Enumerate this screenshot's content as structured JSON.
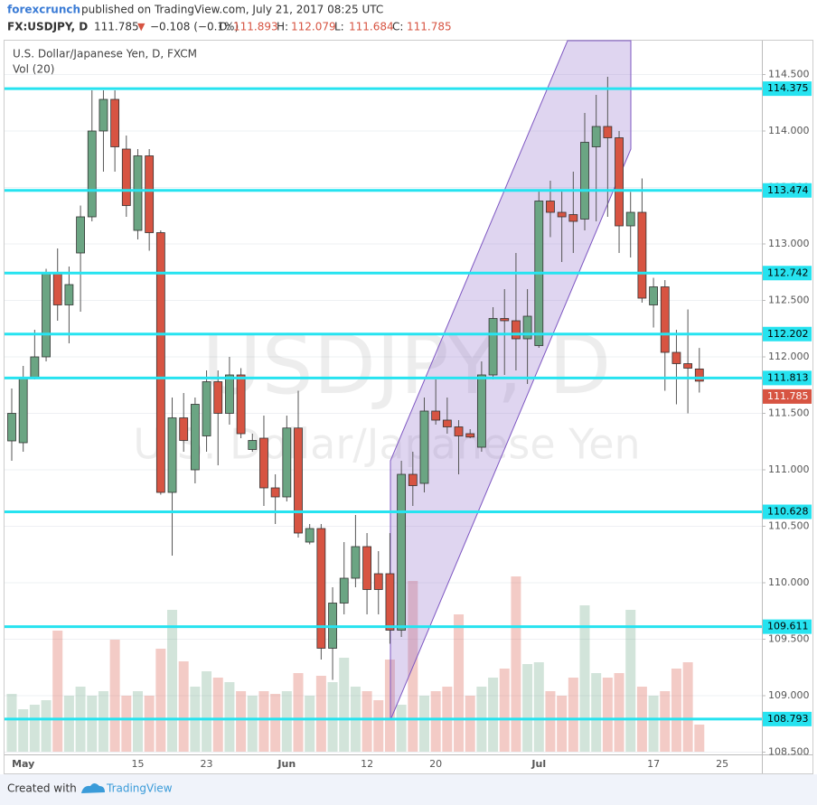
{
  "header": {
    "author": "forexcrunch",
    "published": "published on TradingView.com, July 21, 2017 08:25 UTC",
    "symbol": "FX:USDJPY, D",
    "arrow": "▼",
    "change": "−0.108 (−0.1%)",
    "ohlc_labels": [
      "O:",
      "H:",
      "L:",
      "C:"
    ]
  },
  "chart_data": {
    "type": "candlestick",
    "title": "U.S. Dollar/Japanese Yen, D, FXCM",
    "volume_label": "Vol (20)",
    "watermark": [
      "USDJPY, D",
      "U.S. Dollar/Japanese Yen"
    ],
    "categories": [
      null,
      "May",
      null,
      null,
      null,
      null,
      null,
      null,
      null,
      null,
      null,
      "15",
      null,
      null,
      null,
      null,
      null,
      "23",
      null,
      null,
      null,
      null,
      null,
      null,
      "Jun",
      null,
      null,
      null,
      null,
      null,
      null,
      "12",
      null,
      null,
      null,
      null,
      null,
      "20",
      null,
      null,
      null,
      null,
      null,
      null,
      null,
      null,
      "Jul",
      null,
      null,
      null,
      null,
      null,
      null,
      null,
      null,
      null,
      "17",
      null,
      null,
      null,
      null,
      null,
      "25"
    ],
    "open": [
      111.256,
      111.24,
      111.82,
      112.0,
      112.74,
      112.46,
      112.92,
      113.24,
      114.0,
      114.28,
      113.84,
      113.12,
      113.78,
      113.1,
      110.8,
      111.46,
      111.0,
      111.3,
      111.78,
      111.5,
      111.84,
      111.18,
      111.28,
      110.84,
      110.76,
      111.37,
      110.36,
      110.48,
      109.42,
      109.82,
      110.04,
      110.32,
      110.08,
      110.08,
      109.58,
      110.96,
      110.88,
      111.52,
      111.44,
      111.38,
      111.32,
      111.2,
      111.84,
      112.34,
      112.32,
      112.16,
      112.1,
      113.38,
      113.28,
      113.26,
      113.22,
      113.86,
      114.04,
      113.94,
      113.16,
      113.28,
      112.46,
      112.62,
      112.04,
      111.94,
      111.893,
      null,
      null
    ],
    "high": [
      111.72,
      111.92,
      112.24,
      112.78,
      112.96,
      112.8,
      113.34,
      114.36,
      114.36,
      114.36,
      113.96,
      113.84,
      113.84,
      113.12,
      111.64,
      111.68,
      111.64,
      111.88,
      111.88,
      112.0,
      111.9,
      111.32,
      111.48,
      110.96,
      111.48,
      111.7,
      110.52,
      110.52,
      109.96,
      110.36,
      110.6,
      110.44,
      110.28,
      110.44,
      111.08,
      111.16,
      111.64,
      111.8,
      111.64,
      111.44,
      111.36,
      111.96,
      112.44,
      112.6,
      112.92,
      112.6,
      113.48,
      113.56,
      113.48,
      113.64,
      114.16,
      114.32,
      114.48,
      114.0,
      113.46,
      113.58,
      112.7,
      112.68,
      112.24,
      112.42,
      112.079,
      null,
      null
    ],
    "low": [
      111.08,
      111.16,
      111.8,
      111.96,
      112.32,
      112.12,
      112.4,
      113.2,
      113.64,
      113.64,
      113.24,
      113.04,
      112.94,
      110.78,
      110.24,
      111.16,
      110.88,
      111.16,
      111.04,
      111.4,
      111.28,
      111.16,
      110.68,
      110.52,
      110.72,
      110.4,
      110.34,
      109.32,
      109.14,
      109.72,
      109.96,
      109.72,
      109.72,
      109.46,
      109.52,
      110.68,
      110.8,
      111.4,
      111.32,
      110.96,
      111.28,
      111.16,
      111.8,
      111.84,
      111.88,
      111.76,
      112.08,
      113.06,
      112.84,
      112.92,
      113.12,
      113.2,
      113.24,
      112.92,
      112.88,
      112.48,
      112.26,
      111.7,
      111.58,
      111.5,
      111.684,
      null,
      null
    ],
    "close": [
      111.5,
      111.82,
      112.0,
      112.74,
      112.46,
      112.64,
      113.24,
      114.0,
      114.28,
      113.86,
      113.34,
      113.78,
      113.1,
      110.8,
      111.46,
      111.26,
      111.58,
      111.78,
      111.5,
      111.84,
      111.32,
      111.26,
      110.84,
      110.76,
      111.37,
      110.44,
      110.48,
      109.42,
      109.82,
      110.04,
      110.32,
      109.94,
      109.94,
      109.58,
      110.96,
      110.86,
      111.52,
      111.44,
      111.38,
      111.3,
      111.29,
      111.84,
      112.34,
      112.32,
      112.16,
      112.36,
      113.38,
      113.28,
      113.24,
      113.2,
      113.9,
      114.04,
      113.94,
      113.16,
      113.28,
      112.52,
      112.62,
      112.04,
      111.94,
      111.9,
      111.785,
      null,
      null
    ],
    "volume": [
      64,
      47,
      52,
      57,
      134,
      62,
      72,
      62,
      67,
      124,
      62,
      67,
      62,
      114,
      157,
      100,
      72,
      89,
      82,
      77,
      67,
      62,
      67,
      64,
      67,
      87,
      62,
      84,
      77,
      104,
      72,
      67,
      57,
      102,
      52,
      189,
      62,
      67,
      72,
      152,
      62,
      72,
      82,
      92,
      194,
      97,
      99,
      67,
      62,
      82,
      162,
      87,
      82,
      87,
      157,
      72,
      62,
      67,
      92,
      99,
      30,
      null,
      null
    ],
    "up_color": "#6ba583",
    "down_color": "#d75442",
    "line_color": "#26e3f0",
    "ylim": [
      108.48,
      114.8
    ],
    "yticks": [
      {
        "value": 108.5,
        "label": "108.500"
      },
      {
        "value": 109,
        "label": "109.000"
      },
      {
        "value": 109.5,
        "label": "109.500"
      },
      {
        "value": 110,
        "label": "110.000"
      },
      {
        "value": 110.5,
        "label": "110.500"
      },
      {
        "value": 111,
        "label": "111.000"
      },
      {
        "value": 111.5,
        "label": "111.500"
      },
      {
        "value": 112,
        "label": "112.000"
      },
      {
        "value": 112.5,
        "label": "112.500"
      },
      {
        "value": 113,
        "label": "113.000"
      },
      {
        "value": 113.5,
        "label": "113.500"
      },
      {
        "value": 114,
        "label": "114.000"
      },
      {
        "value": 114.5,
        "label": "114.500"
      }
    ],
    "hlines": [
      114.375,
      113.474,
      112.742,
      112.202,
      111.813,
      110.628,
      109.611,
      108.793
    ],
    "grid": true
  },
  "footer": {
    "created": "Created with",
    "brand": "TradingView"
  }
}
